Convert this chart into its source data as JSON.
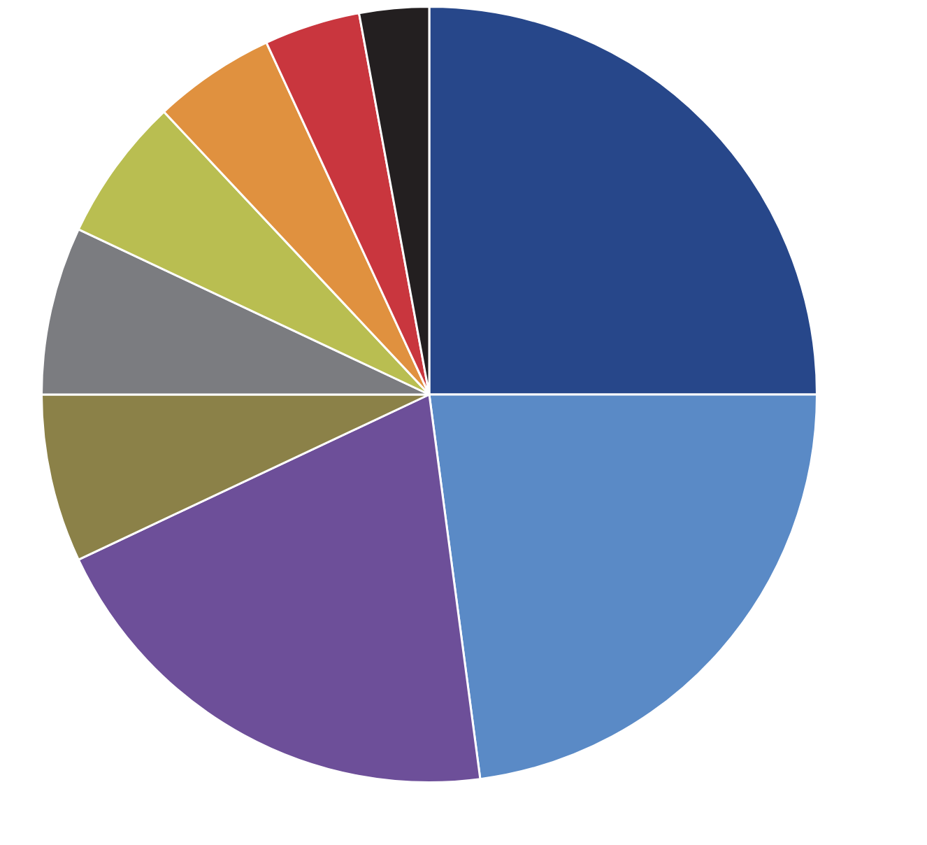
{
  "chart_data": {
    "type": "pie",
    "categories": [
      null,
      null,
      null,
      null,
      null,
      null,
      null,
      null,
      null
    ],
    "values": [
      25,
      22.9,
      20.1,
      7,
      7,
      6,
      5.1,
      4,
      2.9
    ],
    "colors": [
      "#27478a",
      "#5a8ac6",
      "#6d4f99",
      "#8b8148",
      "#7b7c80",
      "#b9be51",
      "#e0913f",
      "#c9363e",
      "#231f20"
    ],
    "legend": false
  }
}
